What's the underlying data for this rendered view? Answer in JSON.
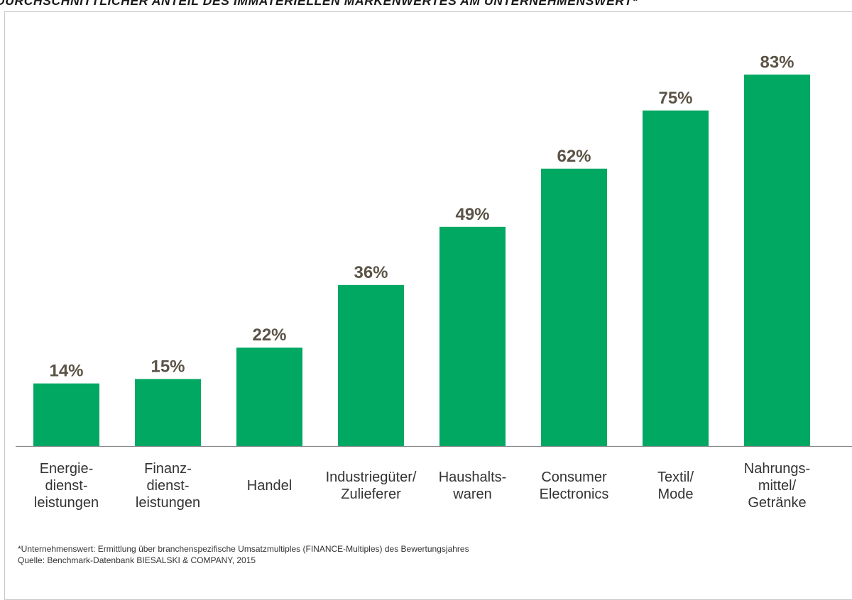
{
  "title": "DURCHSCHNITTLICHER ANTEIL DES IMMATERIELLEN MARKENWERTES AM UNTERNEHMENSWERT*",
  "colors": {
    "bar": "#00A862",
    "value_label": "#5B5346",
    "axis": "#8a8a8a",
    "category_label": "#333333"
  },
  "chart_data": {
    "type": "bar",
    "title": "DURCHSCHNITTLICHER ANTEIL DES IMMATERIELLEN MARKENWERTES AM UNTERNEHMENSWERT*",
    "xlabel": "",
    "ylabel": "",
    "ylim": [
      0,
      100
    ],
    "grid": false,
    "legend": "none",
    "categories": [
      [
        "Energie-",
        "dienst-",
        "leistungen"
      ],
      [
        "Finanz-",
        "dienst-",
        "leistungen"
      ],
      [
        "Handel"
      ],
      [
        "Industriegüter/",
        "Zulieferer"
      ],
      [
        "Haushalts-",
        "waren"
      ],
      [
        "Consumer",
        "Electronics"
      ],
      [
        "Textil/",
        "Mode"
      ],
      [
        "Nahrungs-",
        "mittel/",
        "Getränke"
      ]
    ],
    "values": [
      14,
      15,
      22,
      36,
      49,
      62,
      75,
      83
    ],
    "value_labels": [
      "14%",
      "15%",
      "22%",
      "36%",
      "49%",
      "62%",
      "75%",
      "83%"
    ]
  },
  "footnote": {
    "line1": "*Unternehmenswert: Ermittlung über branchenspezifische Umsatzmultiples (FINANCE-Multiples) des Bewertungsjahres",
    "line2": "Quelle: Benchmark-Datenbank BIESALSKI & COMPANY, 2015"
  }
}
